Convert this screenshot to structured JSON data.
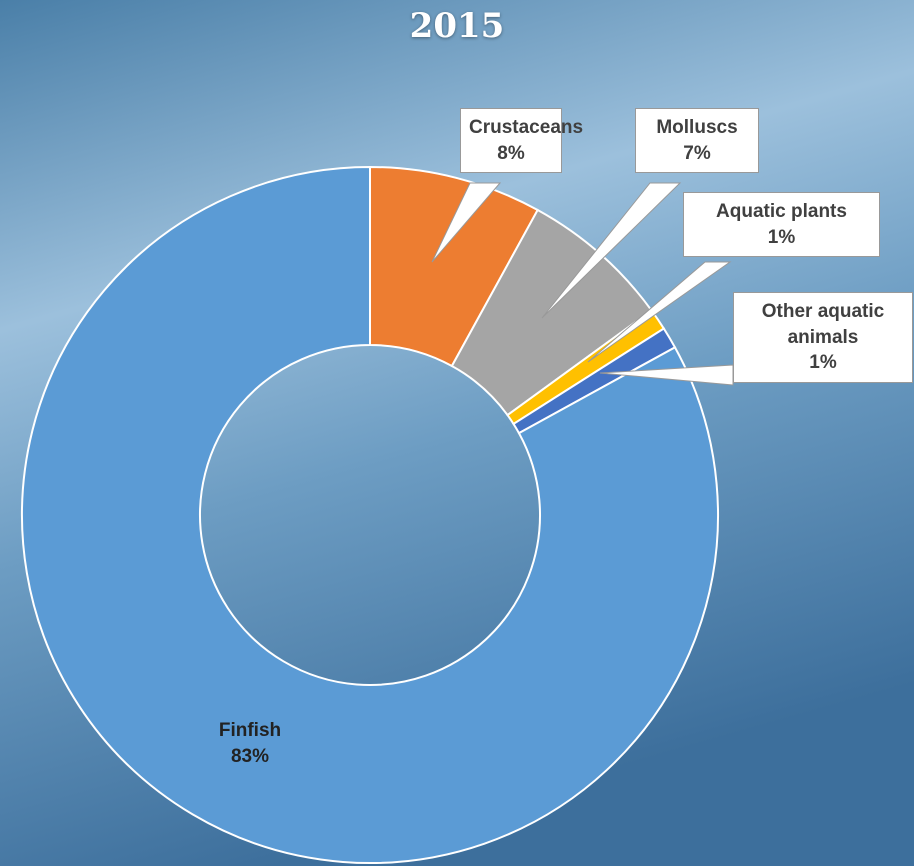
{
  "chart_data": {
    "type": "donut",
    "title": "2015",
    "categories": [
      "Crustaceans",
      "Molluscs",
      "Aquatic plants",
      "Other aquatic animals",
      "Finfish"
    ],
    "values": [
      8,
      7,
      1,
      1,
      83
    ],
    "value_labels": [
      "8%",
      "7%",
      "1%",
      "1%",
      "83%"
    ],
    "colors": [
      "#ed7d31",
      "#a5a5a5",
      "#ffc000",
      "#4472c4",
      "#5b9bd5"
    ]
  }
}
